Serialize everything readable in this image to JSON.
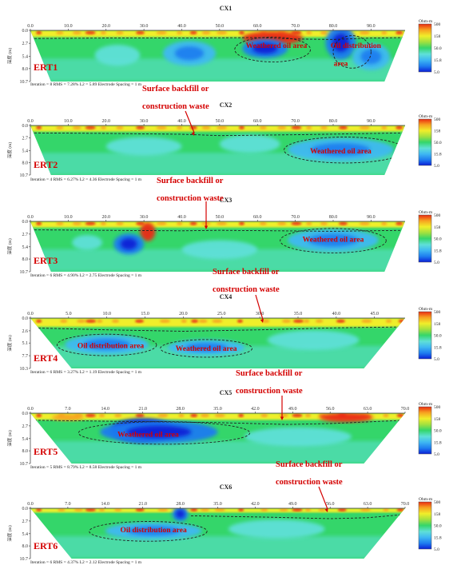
{
  "colors": {
    "scale": [
      "#0a1fd6",
      "#1e7cf0",
      "#3fb9f2",
      "#5fe0d8",
      "#34d66a",
      "#9fe040",
      "#f0ee2a",
      "#f7a020",
      "#ea2a12"
    ]
  },
  "colorbar": {
    "unit": "Ohm-m",
    "ticks": [
      "500",
      "158",
      "50.0",
      "15.8",
      "5.0"
    ]
  },
  "y_axis_label": "深度 (m)",
  "chart_data": [
    {
      "type": "heatmap",
      "title": "CX1",
      "label": "ERT1",
      "x_ticks": [
        "0.0",
        "10.0",
        "20.0",
        "30.0",
        "40.0",
        "50.0",
        "60.0",
        "70.0",
        "80.0",
        "90.0"
      ],
      "x_range": [
        0,
        99
      ],
      "y_ticks": [
        "0.0",
        "2.7",
        "5.4",
        "8.0",
        "10.7"
      ],
      "y_range": [
        0,
        10.7
      ],
      "stats": "Iteration = 8    RMS = 7.28%    L2 = 5.89    Electrode Spacing = 1 m",
      "annotations": [
        {
          "text": "Weathered oil area",
          "x": 65,
          "y": 3.2,
          "inside": true
        },
        {
          "text": "Oil distribution",
          "x": 86,
          "y": 3.2,
          "inside": true
        },
        {
          "text": "area",
          "x": 82,
          "y": 6.9,
          "inside": true
        }
      ],
      "features": [
        {
          "kind": "hot",
          "x": [
            0,
            99
          ],
          "y": [
            0,
            1.4
          ]
        },
        {
          "kind": "blob",
          "cx": 64,
          "cy": 1.6,
          "rx": 8,
          "ry": 1.4,
          "v": 8
        },
        {
          "kind": "blob",
          "cx": 82,
          "cy": 2.6,
          "rx": 4,
          "ry": 3.5,
          "v": 1
        },
        {
          "kind": "blob",
          "cx": 62,
          "cy": 3.8,
          "rx": 6,
          "ry": 2.0,
          "v": 1
        },
        {
          "kind": "blob",
          "cx": 42,
          "cy": 4.8,
          "rx": 7,
          "ry": 2.6,
          "v": 2
        },
        {
          "kind": "blob",
          "cx": 23,
          "cy": 5.2,
          "rx": 6,
          "ry": 2.2,
          "v": 3
        },
        {
          "kind": "blob",
          "cx": 90,
          "cy": 5.5,
          "rx": 5,
          "ry": 2.8,
          "v": 2
        }
      ],
      "dashed_boundary": [
        [
          0,
          1.7
        ],
        [
          20,
          1.6
        ],
        [
          40,
          1.6
        ],
        [
          60,
          1.5
        ],
        [
          70,
          1.8
        ],
        [
          80,
          1.9
        ],
        [
          90,
          1.6
        ],
        [
          99,
          1.5
        ]
      ],
      "dashed_regions": [
        {
          "cx": 64,
          "cy": 4.0,
          "rx": 10,
          "ry": 2.6
        },
        {
          "cx": 85,
          "cy": 4.5,
          "rx": 5,
          "ry": 3.4
        }
      ]
    },
    {
      "type": "heatmap",
      "title": "CX2",
      "label": "ERT2",
      "x_ticks": [
        "0.0",
        "10.0",
        "20.0",
        "30.0",
        "40.0",
        "50.0",
        "60.0",
        "70.0",
        "80.0",
        "90.0"
      ],
      "x_range": [
        0,
        99
      ],
      "y_ticks": [
        "0.0",
        "2.7",
        "5.4",
        "8.0",
        "10.7"
      ],
      "y_range": [
        0,
        10.7
      ],
      "stats": "Iteration = 4    RMS = 6.27%    L2 = 4.36    Electrode Spacing = 1 m",
      "annotations": [
        {
          "text": "Weathered oil area",
          "x": 82,
          "y": 5.5,
          "inside": true
        }
      ],
      "features": [
        {
          "kind": "hot",
          "x": [
            0,
            99
          ],
          "y": [
            0,
            1.3
          ]
        },
        {
          "kind": "blob",
          "cx": 82,
          "cy": 5.2,
          "rx": 14,
          "ry": 2.5,
          "v": 2
        },
        {
          "kind": "blob",
          "cx": 30,
          "cy": 4.5,
          "rx": 10,
          "ry": 2.0,
          "v": 3
        },
        {
          "kind": "blob",
          "cx": 58,
          "cy": 4.0,
          "rx": 8,
          "ry": 2.0,
          "v": 3
        }
      ],
      "dashed_boundary": [
        [
          0,
          1.6
        ],
        [
          20,
          1.7
        ],
        [
          40,
          1.9
        ],
        [
          50,
          2.2
        ],
        [
          70,
          2.0
        ],
        [
          99,
          1.6
        ]
      ],
      "dashed_regions": [
        {
          "cx": 83,
          "cy": 5.3,
          "rx": 16,
          "ry": 2.8
        }
      ]
    },
    {
      "type": "heatmap",
      "title": "CX3",
      "label": "ERT3",
      "x_ticks": [
        "0.0",
        "10.0",
        "20.0",
        "30.0",
        "40.0",
        "50.0",
        "60.0",
        "70.0",
        "80.0",
        "90.0"
      ],
      "x_range": [
        0,
        99
      ],
      "y_ticks": [
        "0.0",
        "2.7",
        "5.4",
        "8.0",
        "10.7"
      ],
      "y_range": [
        0,
        10.7
      ],
      "stats": "Iteration = 6    RMS = 4.90%    L2 = 2.75    Electrode Spacing = 1 m",
      "annotations": [
        {
          "text": "Weathered oil area",
          "x": 80,
          "y": 3.8,
          "inside": true
        }
      ],
      "features": [
        {
          "kind": "hot",
          "x": [
            0,
            99
          ],
          "y": [
            0,
            1.3
          ]
        },
        {
          "kind": "blob",
          "cx": 31,
          "cy": 2.2,
          "rx": 2,
          "ry": 2.0,
          "v": 8
        },
        {
          "kind": "blob",
          "cx": 26,
          "cy": 4.8,
          "rx": 4,
          "ry": 2.2,
          "v": 1
        },
        {
          "kind": "blob",
          "cx": 15,
          "cy": 4.5,
          "rx": 4,
          "ry": 1.6,
          "v": 3
        },
        {
          "kind": "blob",
          "cx": 80,
          "cy": 4.0,
          "rx": 12,
          "ry": 2.4,
          "v": 2
        },
        {
          "kind": "blob",
          "cx": 50,
          "cy": 6.0,
          "rx": 10,
          "ry": 2.0,
          "v": 3
        }
      ],
      "dashed_boundary": [
        [
          0,
          1.8
        ],
        [
          20,
          1.9
        ],
        [
          40,
          2.0
        ],
        [
          50,
          1.9
        ],
        [
          65,
          2.0
        ],
        [
          80,
          2.1
        ],
        [
          99,
          1.9
        ]
      ],
      "dashed_regions": [
        {
          "cx": 80,
          "cy": 4.1,
          "rx": 14,
          "ry": 2.6
        }
      ]
    },
    {
      "type": "heatmap",
      "title": "CX4",
      "label": "ERT4",
      "x_ticks": [
        "0.0",
        "5.0",
        "10.0",
        "15.0",
        "20.0",
        "25.0",
        "30.0",
        "35.0",
        "40.0",
        "45.0"
      ],
      "x_range": [
        0,
        49
      ],
      "y_ticks": [
        "0.0",
        "2.6",
        "5.1",
        "7.7",
        "10.3"
      ],
      "y_range": [
        0,
        10.3
      ],
      "stats": "Iteration = 6    RMS = 3.27%    L2 = 1.19    Electrode Spacing = 1 m",
      "annotations": [
        {
          "text": "Oil distribution area",
          "x": 10.5,
          "y": 5.6,
          "inside": true
        },
        {
          "text": "Weathered oil area",
          "x": 23,
          "y": 6.2,
          "inside": true
        }
      ],
      "features": [
        {
          "kind": "hot",
          "x": [
            0,
            49
          ],
          "y": [
            0,
            1.8
          ]
        },
        {
          "kind": "blob",
          "cx": 10,
          "cy": 5.4,
          "rx": 5.5,
          "ry": 2.0,
          "v": 2
        },
        {
          "kind": "blob",
          "cx": 23,
          "cy": 6.0,
          "rx": 5,
          "ry": 1.6,
          "v": 2
        },
        {
          "kind": "blob",
          "cx": 37,
          "cy": 4.5,
          "rx": 6,
          "ry": 2.0,
          "v": 3
        }
      ],
      "dashed_boundary": [
        [
          0,
          2.0
        ],
        [
          10,
          2.4
        ],
        [
          20,
          2.7
        ],
        [
          30,
          2.4
        ],
        [
          40,
          2.0
        ],
        [
          49,
          1.8
        ]
      ],
      "dashed_regions": [
        {
          "cx": 10,
          "cy": 5.5,
          "rx": 6.5,
          "ry": 2.2
        },
        {
          "cx": 23,
          "cy": 6.2,
          "rx": 6,
          "ry": 1.8
        }
      ]
    },
    {
      "type": "heatmap",
      "title": "CX5",
      "label": "ERT5",
      "x_ticks": [
        "0.0",
        "7.0",
        "14.0",
        "21.0",
        "28.0",
        "35.0",
        "42.0",
        "49.0",
        "56.0",
        "63.0",
        "70.0"
      ],
      "x_range": [
        0,
        70
      ],
      "y_ticks": [
        "0.0",
        "2.7",
        "5.4",
        "8.0",
        "10.7"
      ],
      "y_range": [
        0,
        10.7
      ],
      "stats": "Iteration = 5    RMS = 8.79%    L2 = 8.58    Electrode Spacing = 1 m",
      "annotations": [
        {
          "text": "Weathered oil area",
          "x": 22,
          "y": 4.5,
          "inside": true
        }
      ],
      "features": [
        {
          "kind": "hot",
          "x": [
            0,
            70
          ],
          "y": [
            0,
            1.4
          ]
        },
        {
          "kind": "blob",
          "cx": 21,
          "cy": 3.6,
          "rx": 6,
          "ry": 2.5,
          "v": 0
        },
        {
          "kind": "blob",
          "cx": 24,
          "cy": 4.0,
          "rx": 11,
          "ry": 2.4,
          "v": 1
        },
        {
          "kind": "blob",
          "cx": 59,
          "cy": 0.9,
          "rx": 5,
          "ry": 1.0,
          "v": 8
        },
        {
          "kind": "blob",
          "cx": 7,
          "cy": 0.9,
          "rx": 3,
          "ry": 0.7,
          "v": 7
        },
        {
          "kind": "blob",
          "cx": 50,
          "cy": 5.0,
          "rx": 10,
          "ry": 2.0,
          "v": 3
        }
      ],
      "dashed_boundary": [
        [
          0,
          1.5
        ],
        [
          35,
          2.0
        ],
        [
          48,
          2.4
        ],
        [
          56,
          2.2
        ],
        [
          70,
          1.5
        ]
      ],
      "dashed_regions": [
        {
          "cx": 25,
          "cy": 4.2,
          "rx": 16,
          "ry": 2.4
        }
      ]
    },
    {
      "type": "heatmap",
      "title": "CX6",
      "label": "ERT6",
      "x_ticks": [
        "0.0",
        "7.0",
        "14.0",
        "21.0",
        "28.0",
        "35.0",
        "42.0",
        "49.0",
        "56.0",
        "63.0",
        "70.0"
      ],
      "x_range": [
        0,
        70
      ],
      "y_ticks": [
        "0.0",
        "2.7",
        "5.4",
        "8.0",
        "10.7"
      ],
      "y_range": [
        0,
        10.7
      ],
      "stats": "Iteration = 6    RMS = 4.37%    L2 = 2.12    Electrode Spacing = 1 m",
      "annotations": [
        {
          "text": "Oil distribution area",
          "x": 23,
          "y": 4.6,
          "inside": true
        }
      ],
      "features": [
        {
          "kind": "hot",
          "x": [
            0,
            70
          ],
          "y": [
            0,
            0.9
          ]
        },
        {
          "kind": "blob",
          "cx": 28,
          "cy": 1.2,
          "rx": 1.5,
          "ry": 1.6,
          "v": 1
        },
        {
          "kind": "blob",
          "cx": 23,
          "cy": 4.8,
          "rx": 9,
          "ry": 1.8,
          "v": 2
        },
        {
          "kind": "blob",
          "cx": 46,
          "cy": 4.4,
          "rx": 9,
          "ry": 2.0,
          "v": 3
        }
      ],
      "dashed_boundary": [
        [
          30,
          1.6
        ],
        [
          45,
          1.9
        ],
        [
          56,
          2.2
        ],
        [
          63,
          2.0
        ],
        [
          70,
          1.3
        ]
      ],
      "dashed_regions": [
        {
          "cx": 22,
          "cy": 4.9,
          "rx": 11,
          "ry": 2.1
        }
      ]
    }
  ],
  "callouts": [
    {
      "line1": "Surface backfill or",
      "line2": "construction waste"
    },
    {
      "line1": "Surface backfill or",
      "line2": "construction waste"
    },
    {
      "line1": "Surface backfill or",
      "line2": "construction waste"
    },
    {
      "line1": "Surface backfill or",
      "line2": "construction waste"
    },
    {
      "line1": "Surface backfill or",
      "line2": "construction waste"
    }
  ]
}
